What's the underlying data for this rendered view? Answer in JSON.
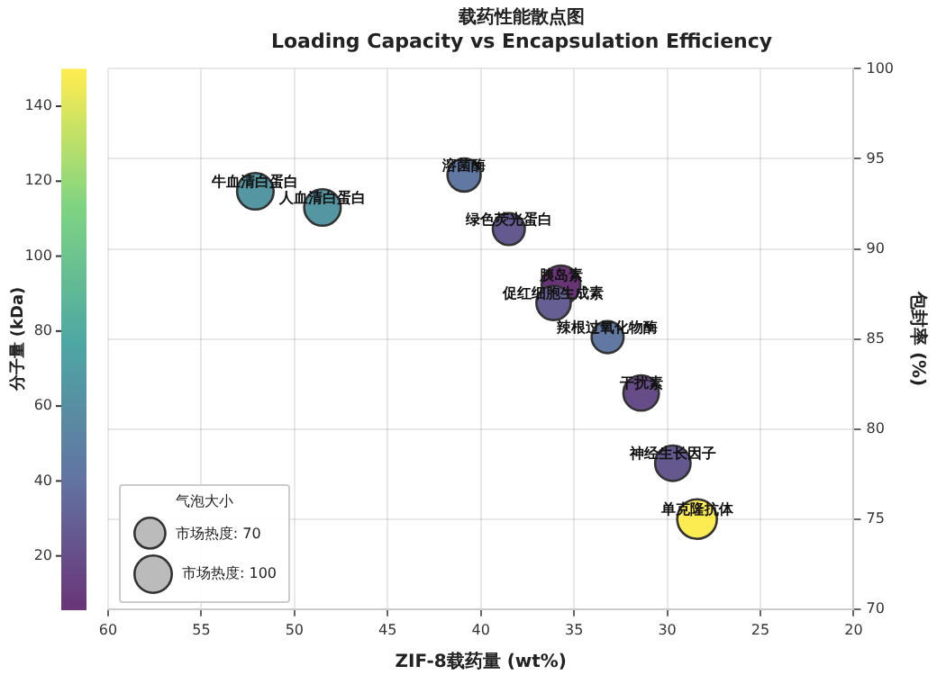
{
  "chart_data": {
    "type": "bubble",
    "title": "载药性能散点图",
    "subtitle": "Loading Capacity vs Encapsulation Efficiency",
    "xlabel": "ZIF-8载药量 (wt%)",
    "ylabel": "包封率 (%)",
    "clabel": "分子量 (kDa)",
    "legend_title": "气泡大小",
    "grid": true,
    "marker": "circle",
    "xlim": [
      60,
      20
    ],
    "xticks": [
      60,
      55,
      50,
      45,
      40,
      35,
      30,
      25,
      20
    ],
    "ylim": [
      70,
      100
    ],
    "yticks": [
      70,
      75,
      80,
      85,
      90,
      95,
      100
    ],
    "clim": [
      5.8,
      150
    ],
    "cticks": [
      20,
      40,
      60,
      80,
      100,
      120,
      140
    ],
    "size_legend": [
      {
        "value": 70,
        "label": "市场热度: 70"
      },
      {
        "value": 100,
        "label": "市场热度: 100"
      }
    ],
    "series": [
      {
        "x": [
          52.1,
          48.5,
          40.9,
          38.5,
          35.7,
          36.1,
          33.2,
          31.4,
          29.7,
          28.4
        ],
        "values": [
          93.2,
          92.3,
          94.1,
          91.1,
          88.0,
          87.0,
          85.1,
          82.0,
          78.1,
          75.0
        ],
        "sizes": [
          85,
          85,
          70,
          65,
          95,
          75,
          65,
          80,
          80,
          100
        ],
        "cvalues": [
          66.5,
          66.5,
          45,
          27,
          5.8,
          30,
          44,
          20,
          26,
          150
        ]
      }
    ],
    "annotations": [
      {
        "text": "牛血清白蛋白",
        "x": 52.1,
        "y": 93.2
      },
      {
        "text": "人血清白蛋白",
        "x": 48.5,
        "y": 92.3
      },
      {
        "text": "溶菌酶",
        "x": 40.9,
        "y": 94.1
      },
      {
        "text": "绿色荧光蛋白",
        "x": 38.5,
        "y": 91.1
      },
      {
        "text": "胰岛素",
        "x": 35.7,
        "y": 88.0
      },
      {
        "text": "促红细胞生成素",
        "x": 36.1,
        "y": 87.0
      },
      {
        "text": "辣根过氧化物酶",
        "x": 33.2,
        "y": 85.1
      },
      {
        "text": "干扰素",
        "x": 31.4,
        "y": 82.0
      },
      {
        "text": "神经生长因子",
        "x": 29.7,
        "y": 78.1
      },
      {
        "text": "单克隆抗体",
        "x": 28.4,
        "y": 75.0
      }
    ]
  }
}
